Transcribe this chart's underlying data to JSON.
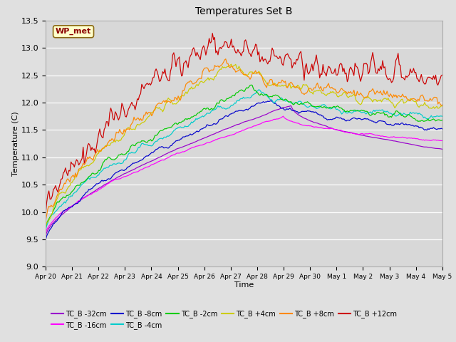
{
  "title": "Temperatures Set B",
  "xlabel": "Time",
  "ylabel": "Temperature (C)",
  "ylim": [
    9.0,
    13.5
  ],
  "annotation": "WP_met",
  "series": [
    {
      "label": "TC_B -32cm",
      "color": "#9900CC"
    },
    {
      "label": "TC_B -16cm",
      "color": "#FF00FF"
    },
    {
      "label": "TC_B -8cm",
      "color": "#0000CC"
    },
    {
      "label": "TC_B -4cm",
      "color": "#00CCCC"
    },
    {
      "label": "TC_B -2cm",
      "color": "#00CC00"
    },
    {
      "label": "TC_B +4cm",
      "color": "#CCCC00"
    },
    {
      "label": "TC_B +8cm",
      "color": "#FF8800"
    },
    {
      "label": "TC_B +12cm",
      "color": "#CC0000"
    }
  ],
  "bg_color": "#E0E0E0",
  "plot_bg": "#D8D8D8",
  "n_points": 360
}
